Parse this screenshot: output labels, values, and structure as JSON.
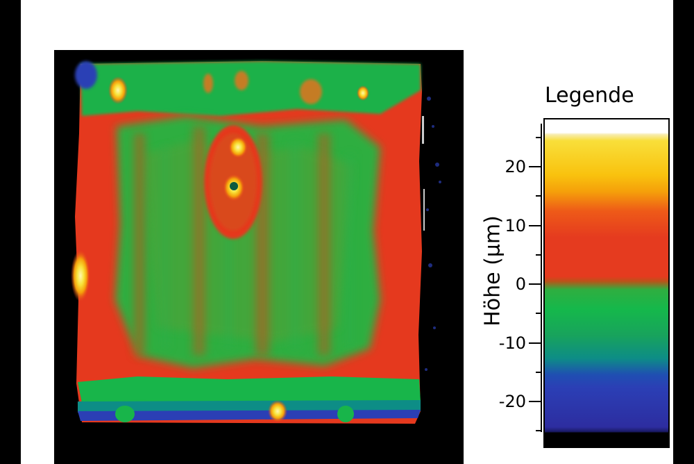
{
  "image": {
    "subject": "height-map",
    "colors": {
      "background": "#000000",
      "panel": "#ffffff",
      "green": "#18b54a",
      "red": "#e53b1f",
      "orange": "#f08a1a",
      "yellow": "#f8e23a",
      "blue": "#2b3fb5"
    }
  },
  "legend": {
    "title": "Legende",
    "axis_title": "Höhe (µm)",
    "ticks": [
      {
        "value": 20,
        "label": "20"
      },
      {
        "value": 10,
        "label": "10"
      },
      {
        "value": 0,
        "label": "0"
      },
      {
        "value": -10,
        "label": "-10"
      },
      {
        "value": -20,
        "label": "-20"
      }
    ],
    "range": [
      -27,
      27
    ]
  }
}
